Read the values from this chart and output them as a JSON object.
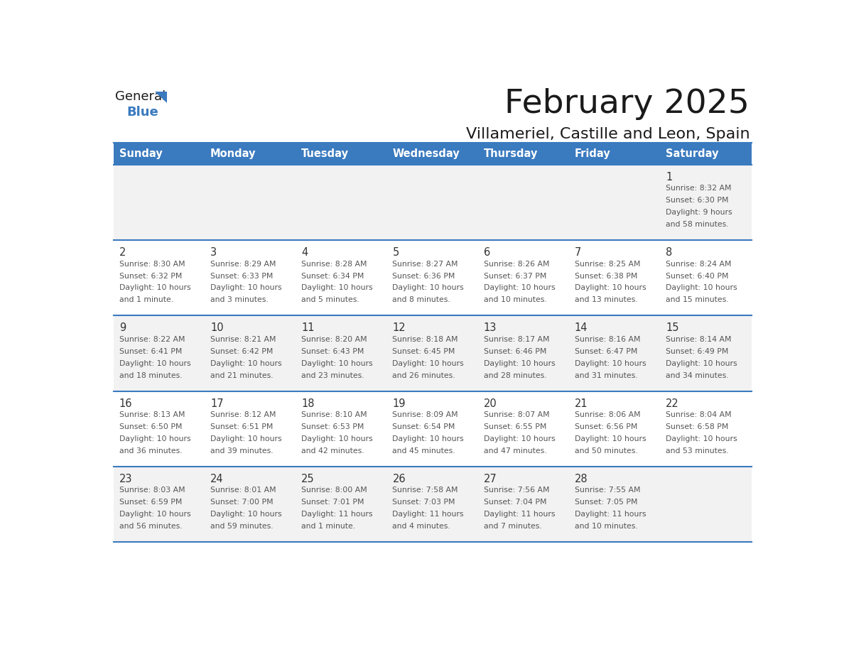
{
  "title": "February 2025",
  "subtitle": "Villameriel, Castille and Leon, Spain",
  "header_bg": "#3a7abf",
  "header_text": "#ffffff",
  "cell_bg_odd": "#f2f2f2",
  "cell_bg_even": "#ffffff",
  "grid_line_color": "#3a7abf",
  "day_headers": [
    "Sunday",
    "Monday",
    "Tuesday",
    "Wednesday",
    "Thursday",
    "Friday",
    "Saturday"
  ],
  "days": [
    {
      "day": 1,
      "col": 6,
      "row": 0,
      "sunrise": "8:32 AM",
      "sunset": "6:30 PM",
      "daylight": "9 hours and 58 minutes."
    },
    {
      "day": 2,
      "col": 0,
      "row": 1,
      "sunrise": "8:30 AM",
      "sunset": "6:32 PM",
      "daylight": "10 hours and 1 minute."
    },
    {
      "day": 3,
      "col": 1,
      "row": 1,
      "sunrise": "8:29 AM",
      "sunset": "6:33 PM",
      "daylight": "10 hours and 3 minutes."
    },
    {
      "day": 4,
      "col": 2,
      "row": 1,
      "sunrise": "8:28 AM",
      "sunset": "6:34 PM",
      "daylight": "10 hours and 5 minutes."
    },
    {
      "day": 5,
      "col": 3,
      "row": 1,
      "sunrise": "8:27 AM",
      "sunset": "6:36 PM",
      "daylight": "10 hours and 8 minutes."
    },
    {
      "day": 6,
      "col": 4,
      "row": 1,
      "sunrise": "8:26 AM",
      "sunset": "6:37 PM",
      "daylight": "10 hours and 10 minutes."
    },
    {
      "day": 7,
      "col": 5,
      "row": 1,
      "sunrise": "8:25 AM",
      "sunset": "6:38 PM",
      "daylight": "10 hours and 13 minutes."
    },
    {
      "day": 8,
      "col": 6,
      "row": 1,
      "sunrise": "8:24 AM",
      "sunset": "6:40 PM",
      "daylight": "10 hours and 15 minutes."
    },
    {
      "day": 9,
      "col": 0,
      "row": 2,
      "sunrise": "8:22 AM",
      "sunset": "6:41 PM",
      "daylight": "10 hours and 18 minutes."
    },
    {
      "day": 10,
      "col": 1,
      "row": 2,
      "sunrise": "8:21 AM",
      "sunset": "6:42 PM",
      "daylight": "10 hours and 21 minutes."
    },
    {
      "day": 11,
      "col": 2,
      "row": 2,
      "sunrise": "8:20 AM",
      "sunset": "6:43 PM",
      "daylight": "10 hours and 23 minutes."
    },
    {
      "day": 12,
      "col": 3,
      "row": 2,
      "sunrise": "8:18 AM",
      "sunset": "6:45 PM",
      "daylight": "10 hours and 26 minutes."
    },
    {
      "day": 13,
      "col": 4,
      "row": 2,
      "sunrise": "8:17 AM",
      "sunset": "6:46 PM",
      "daylight": "10 hours and 28 minutes."
    },
    {
      "day": 14,
      "col": 5,
      "row": 2,
      "sunrise": "8:16 AM",
      "sunset": "6:47 PM",
      "daylight": "10 hours and 31 minutes."
    },
    {
      "day": 15,
      "col": 6,
      "row": 2,
      "sunrise": "8:14 AM",
      "sunset": "6:49 PM",
      "daylight": "10 hours and 34 minutes."
    },
    {
      "day": 16,
      "col": 0,
      "row": 3,
      "sunrise": "8:13 AM",
      "sunset": "6:50 PM",
      "daylight": "10 hours and 36 minutes."
    },
    {
      "day": 17,
      "col": 1,
      "row": 3,
      "sunrise": "8:12 AM",
      "sunset": "6:51 PM",
      "daylight": "10 hours and 39 minutes."
    },
    {
      "day": 18,
      "col": 2,
      "row": 3,
      "sunrise": "8:10 AM",
      "sunset": "6:53 PM",
      "daylight": "10 hours and 42 minutes."
    },
    {
      "day": 19,
      "col": 3,
      "row": 3,
      "sunrise": "8:09 AM",
      "sunset": "6:54 PM",
      "daylight": "10 hours and 45 minutes."
    },
    {
      "day": 20,
      "col": 4,
      "row": 3,
      "sunrise": "8:07 AM",
      "sunset": "6:55 PM",
      "daylight": "10 hours and 47 minutes."
    },
    {
      "day": 21,
      "col": 5,
      "row": 3,
      "sunrise": "8:06 AM",
      "sunset": "6:56 PM",
      "daylight": "10 hours and 50 minutes."
    },
    {
      "day": 22,
      "col": 6,
      "row": 3,
      "sunrise": "8:04 AM",
      "sunset": "6:58 PM",
      "daylight": "10 hours and 53 minutes."
    },
    {
      "day": 23,
      "col": 0,
      "row": 4,
      "sunrise": "8:03 AM",
      "sunset": "6:59 PM",
      "daylight": "10 hours and 56 minutes."
    },
    {
      "day": 24,
      "col": 1,
      "row": 4,
      "sunrise": "8:01 AM",
      "sunset": "7:00 PM",
      "daylight": "10 hours and 59 minutes."
    },
    {
      "day": 25,
      "col": 2,
      "row": 4,
      "sunrise": "8:00 AM",
      "sunset": "7:01 PM",
      "daylight": "11 hours and 1 minute."
    },
    {
      "day": 26,
      "col": 3,
      "row": 4,
      "sunrise": "7:58 AM",
      "sunset": "7:03 PM",
      "daylight": "11 hours and 4 minutes."
    },
    {
      "day": 27,
      "col": 4,
      "row": 4,
      "sunrise": "7:56 AM",
      "sunset": "7:04 PM",
      "daylight": "11 hours and 7 minutes."
    },
    {
      "day": 28,
      "col": 5,
      "row": 4,
      "sunrise": "7:55 AM",
      "sunset": "7:05 PM",
      "daylight": "11 hours and 10 minutes."
    }
  ],
  "logo_text_general": "General",
  "logo_text_blue": "Blue",
  "logo_color_general": "#1a1a1a",
  "logo_color_blue": "#3a7abf",
  "logo_triangle_color": "#3a7abf",
  "text_color": "#555555",
  "day_num_color": "#333333"
}
